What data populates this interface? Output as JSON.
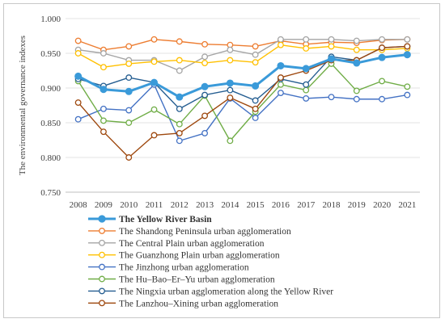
{
  "chart_data": {
    "type": "line",
    "title": "",
    "xlabel": "",
    "ylabel": "The environmental governance indexes",
    "ylim": [
      0.75,
      1.0
    ],
    "yticks": [
      "0.750",
      "0.800",
      "0.850",
      "0.900",
      "0.950",
      "1.000"
    ],
    "x": [
      "2008",
      "2009",
      "2010",
      "2011",
      "2012",
      "2013",
      "2014",
      "2015",
      "2016",
      "2017",
      "2018",
      "2019",
      "2020",
      "2021"
    ],
    "grid": true,
    "legend_position": "bottom",
    "series": [
      {
        "name": "The Yellow River Basin",
        "color": "#3a9ad9",
        "emphasis": true,
        "values": [
          0.917,
          0.898,
          0.895,
          0.908,
          0.887,
          0.902,
          0.907,
          0.903,
          0.932,
          0.928,
          0.942,
          0.936,
          0.944,
          0.948
        ]
      },
      {
        "name": "The Shandong Peninsula urban agglomeration",
        "color": "#ed7d31",
        "values": [
          0.968,
          0.955,
          0.96,
          0.97,
          0.967,
          0.963,
          0.962,
          0.96,
          0.968,
          0.963,
          0.966,
          0.965,
          0.969,
          0.97
        ]
      },
      {
        "name": "The Central Plain urban agglomeration",
        "color": "#a5a5a5",
        "values": [
          0.955,
          0.95,
          0.94,
          0.94,
          0.925,
          0.945,
          0.955,
          0.948,
          0.97,
          0.97,
          0.97,
          0.968,
          0.97,
          0.97
        ]
      },
      {
        "name": "The Guanzhong Plain urban agglomeration",
        "color": "#ffc000",
        "values": [
          0.95,
          0.93,
          0.935,
          0.938,
          0.94,
          0.936,
          0.94,
          0.937,
          0.962,
          0.957,
          0.96,
          0.955,
          0.955,
          0.957
        ]
      },
      {
        "name": "The Jinzhong urban agglomeration",
        "color": "#4472c4",
        "values": [
          0.855,
          0.87,
          0.868,
          0.905,
          0.824,
          0.835,
          0.885,
          0.857,
          0.893,
          0.885,
          0.887,
          0.884,
          0.884,
          0.89
        ]
      },
      {
        "name": "The Hu–Bao–Er–Yu urban agglomeration",
        "color": "#70ad47",
        "values": [
          0.91,
          0.853,
          0.85,
          0.869,
          0.848,
          0.889,
          0.824,
          0.866,
          0.905,
          0.897,
          0.935,
          0.896,
          0.91,
          0.902
        ]
      },
      {
        "name": "The Ningxia urban agglomeration along the Yellow River",
        "color": "#255e91",
        "values": [
          0.913,
          0.903,
          0.915,
          0.908,
          0.87,
          0.89,
          0.897,
          0.882,
          0.913,
          0.905,
          0.945,
          0.94,
          0.958,
          0.96
        ]
      },
      {
        "name": "The Lanzhou–Xining urban agglomeration",
        "color": "#9e480e",
        "values": [
          0.879,
          0.837,
          0.8,
          0.832,
          0.835,
          0.86,
          0.886,
          0.87,
          0.915,
          0.925,
          0.94,
          0.94,
          0.958,
          0.96
        ]
      }
    ]
  }
}
